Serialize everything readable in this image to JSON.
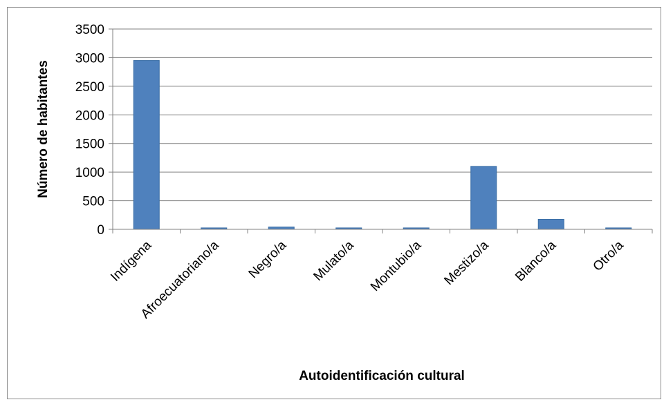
{
  "chart_data": {
    "type": "bar",
    "xlabel": "Autoidentificación cultural",
    "ylabel": "Número de habitantes",
    "categories": [
      "Indígena",
      "Afroecuatoriano/a",
      "Negro/a",
      "Mulato/a",
      "Montubio/a",
      "Mestizo/a",
      "Blanco/a",
      "Otro/a"
    ],
    "values": [
      2950,
      25,
      40,
      25,
      25,
      1100,
      175,
      25
    ],
    "ylim": [
      0,
      3500
    ],
    "yticks": [
      0,
      500,
      1000,
      1500,
      2000,
      2500,
      3000,
      3500
    ],
    "grid": true,
    "legend": "none",
    "colors": {
      "bar": "#4f81bd",
      "bar_edge": "#3a6ea5",
      "grid": "#808080",
      "axis": "#808080"
    }
  }
}
